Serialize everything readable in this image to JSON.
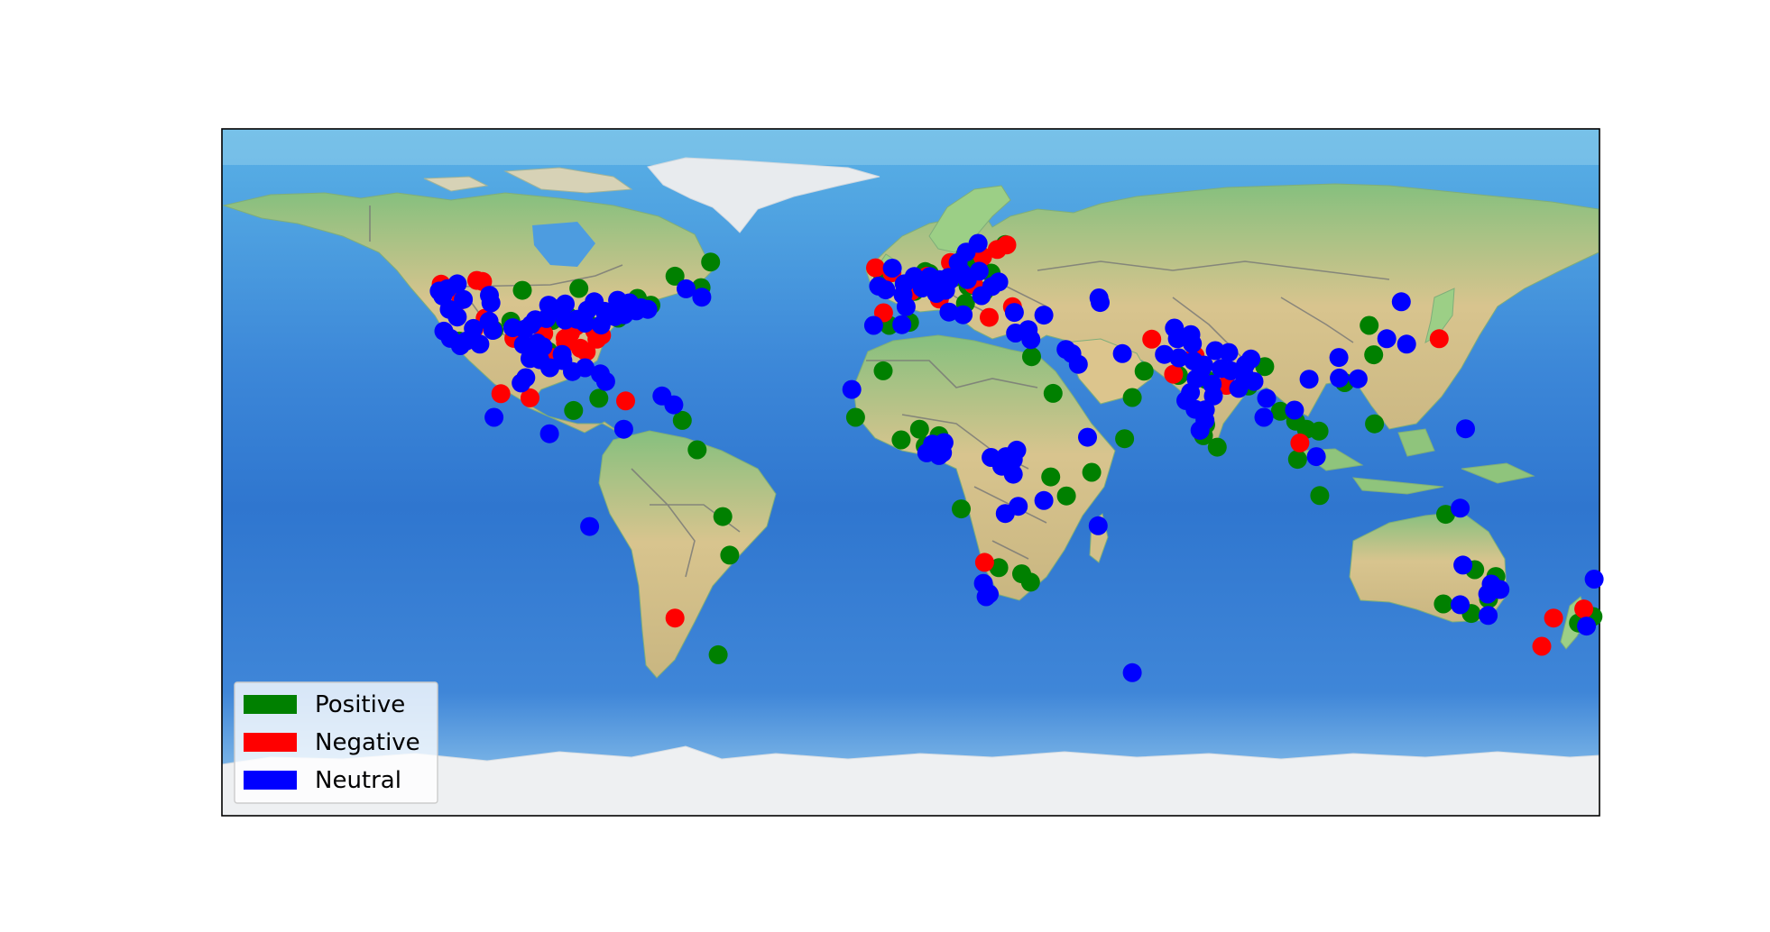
{
  "chart_data": {
    "type": "scatter",
    "projection": "equirectangular",
    "xlim": [
      -180,
      180
    ],
    "ylim": [
      -90,
      90
    ],
    "grid": false,
    "legend_position": "lower-left",
    "colors": {
      "Positive": "#008000",
      "Negative": "#ff0000",
      "Neutral": "#0000ff"
    },
    "legend": [
      "Positive",
      "Negative",
      "Neutral"
    ],
    "series": [
      {
        "name": "Positive",
        "color": "#008000",
        "points": [
          [
            -52.3,
            55.1
          ],
          [
            -61.6,
            51.4
          ],
          [
            -101.5,
            47.7
          ],
          [
            -108.9,
            37.3
          ],
          [
            -89.5,
            40.8
          ],
          [
            -67.9,
            43.8
          ],
          [
            -54.8,
            48.4
          ],
          [
            -86.7,
            48.2
          ],
          [
            -71.4,
            45.6
          ],
          [
            -84.7,
            39.4
          ],
          [
            -76.4,
            40.4
          ],
          [
            -104.5,
            39.6
          ],
          [
            -93.6,
            39.8
          ],
          [
            -79.3,
            41.6
          ],
          [
            -94.7,
            31.7
          ],
          [
            -118.0,
            34.4
          ],
          [
            -49.1,
            -11.6
          ],
          [
            -47.3,
            -21.7
          ],
          [
            -50.3,
            -47.8
          ],
          [
            -5.6,
            38.5
          ],
          [
            -0.3,
            39.3
          ],
          [
            -7.3,
            50.5
          ],
          [
            3.8,
            52.6
          ],
          [
            4.9,
            52.1
          ],
          [
            8.1,
            50.0
          ],
          [
            11.4,
            51.1
          ],
          [
            14.3,
            44.3
          ],
          [
            15.0,
            48.8
          ],
          [
            19.3,
            47.5
          ],
          [
            21.0,
            52.2
          ],
          [
            14.4,
            50.6
          ],
          [
            16.4,
            55.4
          ],
          [
            24.7,
            59.7
          ],
          [
            14.2,
            56.9
          ],
          [
            1.0,
            47.4
          ],
          [
            -7.2,
            26.6
          ],
          [
            -14.4,
            14.4
          ],
          [
            -2.5,
            8.5
          ],
          [
            2.3,
            11.3
          ],
          [
            7.4,
            9.6
          ],
          [
            3.8,
            6.9
          ],
          [
            13.2,
            -9.6
          ],
          [
            23.0,
            -25.0
          ],
          [
            29.0,
            -26.6
          ],
          [
            31.3,
            -28.8
          ],
          [
            31.6,
            30.3
          ],
          [
            37.2,
            20.7
          ],
          [
            36.6,
            -1.2
          ],
          [
            40.7,
            -6.2
          ],
          [
            47.3,
            0.0
          ],
          [
            55.9,
            8.8
          ],
          [
            57.9,
            19.6
          ],
          [
            61.0,
            26.5
          ],
          [
            70.0,
            25.4
          ],
          [
            77.2,
            24.3
          ],
          [
            88.3,
            22.6
          ],
          [
            92.5,
            27.7
          ],
          [
            80.1,
            6.6
          ],
          [
            76.5,
            9.6
          ],
          [
            77.1,
            12.5
          ],
          [
            96.6,
            16.0
          ],
          [
            100.6,
            13.4
          ],
          [
            103.4,
            11.3
          ],
          [
            101.1,
            3.4
          ],
          [
            106.9,
            -6.1
          ],
          [
            106.7,
            10.8
          ],
          [
            113.4,
            23.5
          ],
          [
            119.8,
            38.5
          ],
          [
            121.0,
            30.8
          ],
          [
            121.2,
            12.7
          ],
          [
            139.8,
            -11.0
          ],
          [
            139.2,
            -34.5
          ],
          [
            146.5,
            -37.0
          ],
          [
            151.0,
            -33.2
          ],
          [
            152.9,
            -27.3
          ],
          [
            147.4,
            -25.5
          ],
          [
            174.5,
            -39.5
          ],
          [
            178.3,
            -37.8
          ],
          [
            -55.8,
            5.9
          ],
          [
            -59.7,
            13.6
          ],
          [
            -88.1,
            16.2
          ],
          [
            -81.5,
            19.4
          ]
        ]
      },
      {
        "name": "Negative",
        "color": "#ff0000",
        "points": [
          [
            -122.7,
            49.3
          ],
          [
            -113.4,
            50.3
          ],
          [
            -111.9,
            50.0
          ],
          [
            -117.5,
            45.2
          ],
          [
            -111.2,
            40.4
          ],
          [
            -114.1,
            37.6
          ],
          [
            -102.2,
            34.7
          ],
          [
            -97.6,
            33.0
          ],
          [
            -95.9,
            36.4
          ],
          [
            -90.3,
            35.1
          ],
          [
            -87.5,
            38.3
          ],
          [
            -88.9,
            36.5
          ],
          [
            -82.6,
            37.1
          ],
          [
            -84.8,
            31.6
          ],
          [
            -86.3,
            32.5
          ],
          [
            -93.8,
            30.1
          ],
          [
            -82.0,
            34.9
          ],
          [
            -90.2,
            34.0
          ],
          [
            -80.8,
            35.9
          ],
          [
            -103.7,
            35.1
          ],
          [
            -107.1,
            20.6
          ],
          [
            -99.5,
            19.5
          ],
          [
            -74.5,
            18.7
          ],
          [
            -61.6,
            -38.2
          ],
          [
            -9.2,
            53.6
          ],
          [
            -4.9,
            52.3
          ],
          [
            4.3,
            51.4
          ],
          [
            7.7,
            46.3
          ],
          [
            10.4,
            55.0
          ],
          [
            18.8,
            56.5
          ],
          [
            16.4,
            49.2
          ],
          [
            12.2,
            53.4
          ],
          [
            0.2,
            47.5
          ],
          [
            -7.1,
            41.8
          ],
          [
            20.5,
            40.6
          ],
          [
            25.1,
            59.6
          ],
          [
            22.6,
            58.4
          ],
          [
            26.6,
            43.4
          ],
          [
            7.5,
            45.4
          ],
          [
            19.3,
            -23.6
          ],
          [
            63.0,
            34.9
          ],
          [
            74.3,
            30.6
          ],
          [
            82.5,
            22.8
          ],
          [
            86.6,
            26.3
          ],
          [
            68.7,
            25.7
          ],
          [
            101.7,
            7.7
          ],
          [
            138.1,
            35.0
          ],
          [
            168.0,
            -38.2
          ],
          [
            164.9,
            -45.6
          ],
          [
            175.9,
            -35.8
          ]
        ]
      },
      {
        "name": "Neutral",
        "color": "#0000ff",
        "points": [
          [
            -123.2,
            47.5
          ],
          [
            -118.5,
            49.4
          ],
          [
            -109.7,
            44.4
          ],
          [
            -110.1,
            46.4
          ],
          [
            -116.9,
            45.3
          ],
          [
            -122.3,
            46.2
          ],
          [
            -121.1,
            48.1
          ],
          [
            -120.6,
            42.7
          ],
          [
            -118.5,
            40.7
          ],
          [
            -122.0,
            37.0
          ],
          [
            -117.7,
            33.2
          ],
          [
            -116.2,
            34.4
          ],
          [
            -120.3,
            35.1
          ],
          [
            -112.6,
            33.6
          ],
          [
            -110.2,
            39.6
          ],
          [
            -114.3,
            37.7
          ],
          [
            -109.2,
            37.2
          ],
          [
            -100.9,
            37.5
          ],
          [
            -104.0,
            37.9
          ],
          [
            -98.1,
            40.0
          ],
          [
            -95.2,
            40.3
          ],
          [
            -99.2,
            38.7
          ],
          [
            -90.3,
            39.9
          ],
          [
            -87.3,
            40.1
          ],
          [
            -84.5,
            42.5
          ],
          [
            -82.7,
            44.7
          ],
          [
            -80.0,
            42.2
          ],
          [
            -76.6,
            45.1
          ],
          [
            -73.5,
            42.5
          ],
          [
            -74.9,
            41.3
          ],
          [
            -73.5,
            44.4
          ],
          [
            -68.7,
            42.7
          ],
          [
            -71.7,
            42.3
          ],
          [
            -70.5,
            43.1
          ],
          [
            -77.3,
            40.8
          ],
          [
            -80.9,
            38.6
          ],
          [
            -85.1,
            39.1
          ],
          [
            -92.5,
            42.8
          ],
          [
            -90.3,
            44.1
          ],
          [
            -94.6,
            43.8
          ],
          [
            -101.2,
            33.5
          ],
          [
            -97.6,
            33.9
          ],
          [
            -96.1,
            32.9
          ],
          [
            -96.9,
            29.5
          ],
          [
            -99.5,
            29.8
          ],
          [
            -94.3,
            27.4
          ],
          [
            -90.9,
            29.3
          ],
          [
            -88.4,
            26.4
          ],
          [
            -85.1,
            27.4
          ],
          [
            -100.6,
            24.8
          ],
          [
            -101.8,
            23.4
          ],
          [
            -91.1,
            30.9
          ],
          [
            -79.7,
            23.8
          ],
          [
            -81.1,
            25.8
          ],
          [
            -54.6,
            45.9
          ],
          [
            -58.7,
            48.1
          ],
          [
            -65.0,
            20.0
          ],
          [
            -83.9,
            -14.2
          ],
          [
            -4.8,
            53.5
          ],
          [
            -8.4,
            48.8
          ],
          [
            -6.5,
            47.8
          ],
          [
            -2.0,
            46.5
          ],
          [
            -1.7,
            49.4
          ],
          [
            0.9,
            51.3
          ],
          [
            3.0,
            48.3
          ],
          [
            5.0,
            51.3
          ],
          [
            6.7,
            46.9
          ],
          [
            5.7,
            48.5
          ],
          [
            9.9,
            51.1
          ],
          [
            9.1,
            47.7
          ],
          [
            10.1,
            50.3
          ],
          [
            13.3,
            52.4
          ],
          [
            12.4,
            55.0
          ],
          [
            14.5,
            57.7
          ],
          [
            17.9,
            52.7
          ],
          [
            17.6,
            60.0
          ],
          [
            18.5,
            46.3
          ],
          [
            21.2,
            48.7
          ],
          [
            23.0,
            49.9
          ],
          [
            -1.2,
            43.4
          ],
          [
            7.5,
            50.5
          ],
          [
            14.8,
            50.5
          ],
          [
            10.0,
            42.0
          ],
          [
            -2.3,
            38.7
          ],
          [
            -9.7,
            38.5
          ],
          [
            13.7,
            41.3
          ],
          [
            27.1,
            41.9
          ],
          [
            27.4,
            36.5
          ],
          [
            30.7,
            37.4
          ],
          [
            31.4,
            34.8
          ],
          [
            34.8,
            41.2
          ],
          [
            40.6,
            32.2
          ],
          [
            42.1,
            31.1
          ],
          [
            43.8,
            28.3
          ],
          [
            55.3,
            31.1
          ],
          [
            49.5,
            44.5
          ],
          [
            49.2,
            45.7
          ],
          [
            66.3,
            30.9
          ],
          [
            69.7,
            35.0
          ],
          [
            70.1,
            30.0
          ],
          [
            73.2,
            36.1
          ],
          [
            68.9,
            37.8
          ],
          [
            73.6,
            33.7
          ],
          [
            73.9,
            29.2
          ],
          [
            76.6,
            28.1
          ],
          [
            79.6,
            31.9
          ],
          [
            75.9,
            26.8
          ],
          [
            78.8,
            23.1
          ],
          [
            81.1,
            27.2
          ],
          [
            83.1,
            31.4
          ],
          [
            87.5,
            28.2
          ],
          [
            88.9,
            29.7
          ],
          [
            71.9,
            18.8
          ],
          [
            73.1,
            20.9
          ],
          [
            74.3,
            16.5
          ],
          [
            76.9,
            13.6
          ],
          [
            77.0,
            16.4
          ],
          [
            79.1,
            20.0
          ],
          [
            74.6,
            24.5
          ],
          [
            83.7,
            26.6
          ],
          [
            87.2,
            25.5
          ],
          [
            89.7,
            23.8
          ],
          [
            85.7,
            22.0
          ],
          [
            75.6,
            11.0
          ],
          [
            92.3,
            14.4
          ],
          [
            93.0,
            19.4
          ],
          [
            100.3,
            16.3
          ],
          [
            104.1,
            24.4
          ],
          [
            106.0,
            4.1
          ],
          [
            111.9,
            30.1
          ],
          [
            112.0,
            24.7
          ],
          [
            116.9,
            24.5
          ],
          [
            124.4,
            35.0
          ],
          [
            128.2,
            44.7
          ],
          [
            129.6,
            33.6
          ],
          [
            145.0,
            11.4
          ],
          [
            143.6,
            -9.4
          ],
          [
            144.3,
            -24.3
          ],
          [
            143.6,
            -34.7
          ],
          [
            154.0,
            -30.7
          ],
          [
            151.7,
            -29.3
          ],
          [
            150.9,
            -37.5
          ],
          [
            150.8,
            -31.9
          ],
          [
            176.6,
            -40.3
          ],
          [
            178.6,
            -28.0
          ],
          [
            -15.4,
            21.7
          ],
          [
            7.4,
            4.4
          ],
          [
            4.2,
            5.1
          ],
          [
            5.7,
            7.4
          ],
          [
            7.8,
            6.2
          ],
          [
            8.7,
            7.8
          ],
          [
            8.3,
            5.1
          ],
          [
            21.0,
            3.9
          ],
          [
            23.8,
            1.6
          ],
          [
            24.9,
            4.1
          ],
          [
            26.8,
            3.3
          ],
          [
            27.7,
            5.8
          ],
          [
            26.2,
            2.3
          ],
          [
            26.8,
            -0.5
          ],
          [
            24.7,
            -10.8
          ],
          [
            28.1,
            -8.9
          ],
          [
            19.0,
            -29.1
          ],
          [
            20.5,
            -31.9
          ],
          [
            19.7,
            -32.6
          ],
          [
            34.8,
            -7.4
          ],
          [
            46.2,
            9.2
          ],
          [
            49.0,
            -14.0
          ],
          [
            57.9,
            -52.5
          ],
          [
            -108.9,
            14.4
          ],
          [
            -94.4,
            10.1
          ],
          [
            -75.0,
            11.3
          ],
          [
            -61.9,
            17.7
          ]
        ]
      }
    ]
  }
}
